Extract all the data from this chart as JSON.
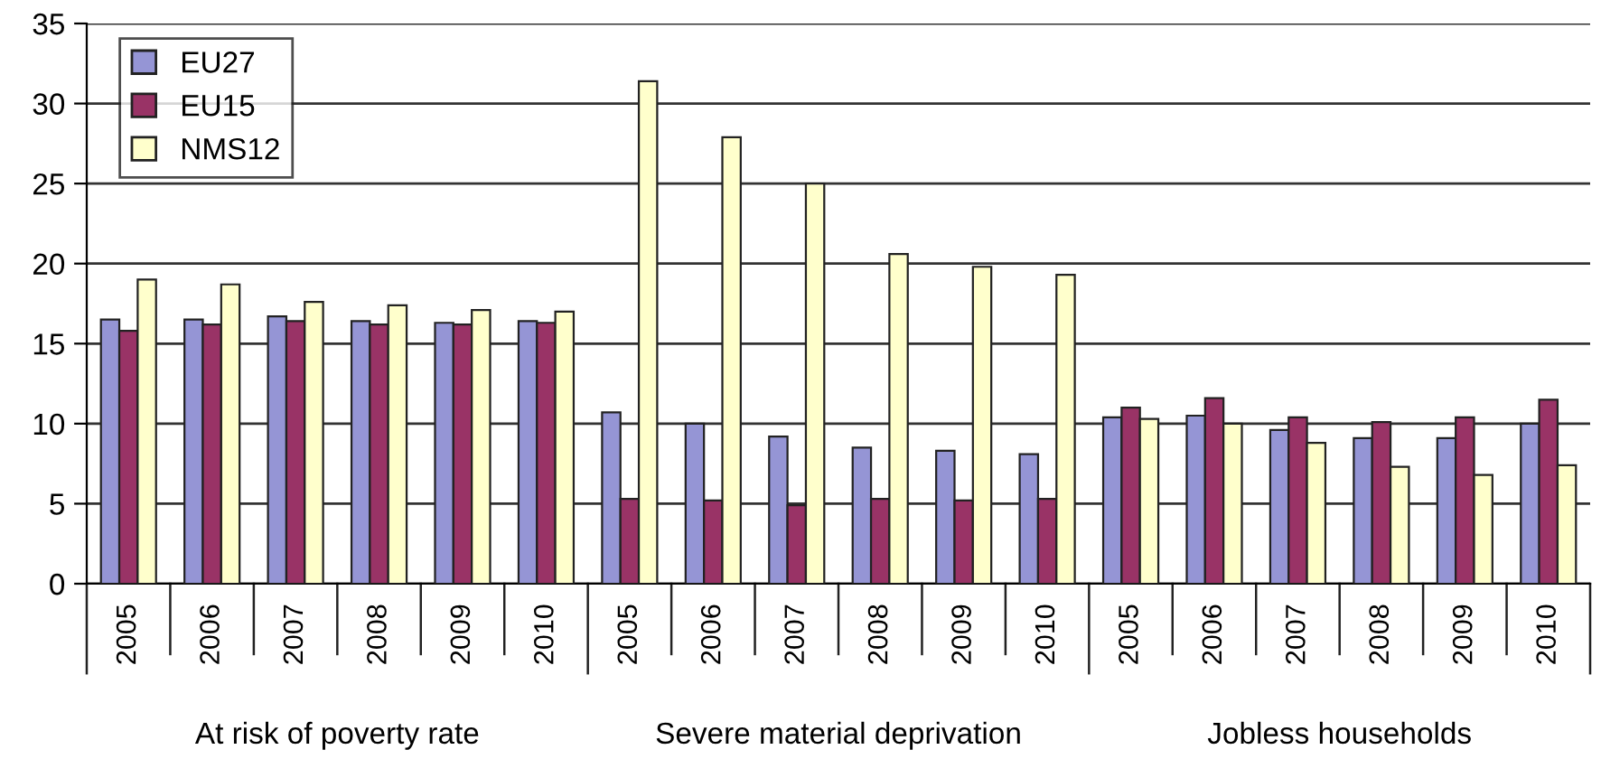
{
  "chart_data": {
    "type": "bar",
    "categories": [
      "2005",
      "2006",
      "2007",
      "2008",
      "2009",
      "2010",
      "2005",
      "2006",
      "2007",
      "2008",
      "2009",
      "2010",
      "2005",
      "2006",
      "2007",
      "2008",
      "2009",
      "2010"
    ],
    "series": [
      {
        "name": "EU27",
        "color": "#9595d5",
        "values": [
          16.5,
          16.5,
          16.7,
          16.4,
          16.3,
          16.4,
          10.7,
          10.0,
          9.2,
          8.5,
          8.3,
          8.1,
          10.4,
          10.5,
          9.6,
          9.1,
          9.1,
          10.0
        ]
      },
      {
        "name": "EU15",
        "color": "#993366",
        "values": [
          15.8,
          16.2,
          16.4,
          16.2,
          16.2,
          16.3,
          5.3,
          5.2,
          4.9,
          5.3,
          5.2,
          5.3,
          11.0,
          11.6,
          10.4,
          10.1,
          10.4,
          11.5
        ]
      },
      {
        "name": "NMS12",
        "color": "#ffffcc",
        "values": [
          19.0,
          18.7,
          17.6,
          17.4,
          17.1,
          17.0,
          31.4,
          27.9,
          25.0,
          20.6,
          19.8,
          19.3,
          10.3,
          10.0,
          8.8,
          7.3,
          6.8,
          7.4
        ]
      }
    ],
    "annotations": [
      "At risk of poverty rate",
      "Severe material deprivation",
      "Jobless households"
    ],
    "ylim": [
      0,
      35
    ],
    "yticks": [
      0,
      5,
      10,
      15,
      20,
      25,
      30,
      35
    ],
    "grid": "y",
    "legend": "top left"
  }
}
